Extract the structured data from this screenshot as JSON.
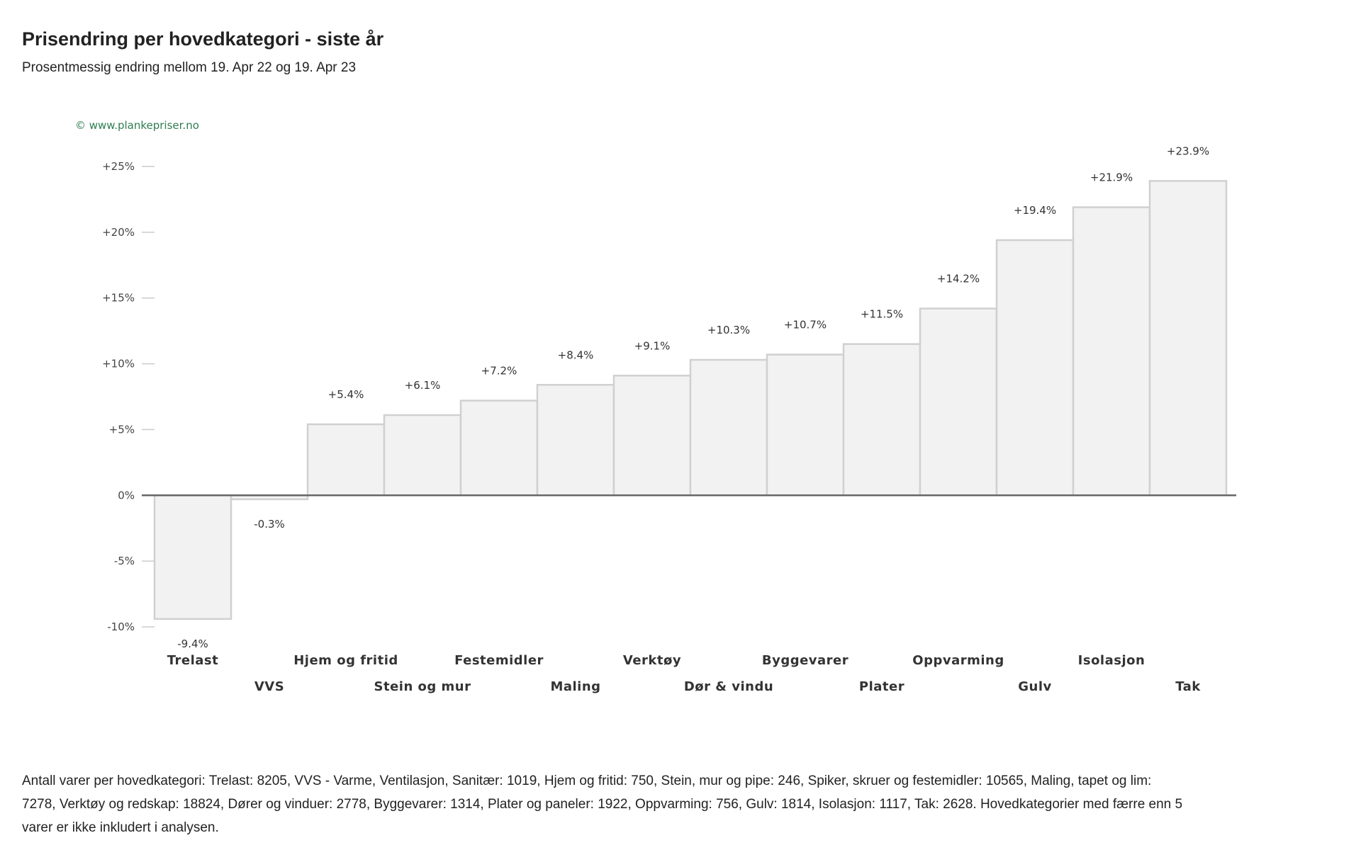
{
  "header": {
    "title": "Prisendring per hovedkategori - siste år",
    "subtitle": "Prosentmessig endring mellom 19. Apr 22 og 19. Apr 23"
  },
  "chart_data": {
    "type": "bar",
    "title": "Prisendring per hovedkategori - siste år",
    "subtitle": "Prosentmessig endring mellom 19. Apr 22 og 19. Apr 23",
    "credit": "© www.plankepriser.no",
    "xlabel": "",
    "ylabel": "",
    "ylim": [
      -10,
      25
    ],
    "yticks": [
      {
        "value": 25,
        "label": "+25%"
      },
      {
        "value": 20,
        "label": "+20%"
      },
      {
        "value": 15,
        "label": "+15%"
      },
      {
        "value": 10,
        "label": "+10%"
      },
      {
        "value": 5,
        "label": "+5%"
      },
      {
        "value": 0,
        "label": "0%"
      },
      {
        "value": -5,
        "label": "-5%"
      },
      {
        "value": -10,
        "label": "-10%"
      }
    ],
    "categories": [
      "Trelast",
      "VVS",
      "Hjem og fritid",
      "Stein og mur",
      "Festemidler",
      "Maling",
      "Verktøy",
      "Dør & vindu",
      "Byggevarer",
      "Plater",
      "Oppvarming",
      "Gulv",
      "Isolasjon",
      "Tak"
    ],
    "values": [
      -9.4,
      -0.3,
      5.4,
      6.1,
      7.2,
      8.4,
      9.1,
      10.3,
      10.7,
      11.5,
      14.2,
      19.4,
      21.9,
      23.9
    ],
    "data_labels": [
      "-9.4%",
      "-0.3%",
      "+5.4%",
      "+6.1%",
      "+7.2%",
      "+8.4%",
      "+9.1%",
      "+10.3%",
      "+10.7%",
      "+11.5%",
      "+14.2%",
      "+19.4%",
      "+21.9%",
      "+23.9%"
    ],
    "grid": false,
    "legend": "none",
    "colors": {
      "bar_fill": "#f2f2f2",
      "bar_stroke": "#d0d0d0",
      "zero_line": "#666666",
      "tick": "#cccccc",
      "credit": "#2e7d4f"
    }
  },
  "footnote": "Antall varer per hovedkategori: Trelast: 8205, VVS - Varme, Ventilasjon, Sanitær: 1019, Hjem og fritid: 750, Stein, mur og pipe: 246, Spiker, skruer og festemidler: 10565, Maling, tapet og lim: 7278, Verktøy og redskap: 18824, Dører og vinduer: 2778, Byggevarer: 1314, Plater og paneler: 1922, Oppvarming: 756, Gulv: 1814, Isolasjon: 1117, Tak: 2628. Hovedkategorier med færre enn 5 varer er ikke inkludert i analysen."
}
